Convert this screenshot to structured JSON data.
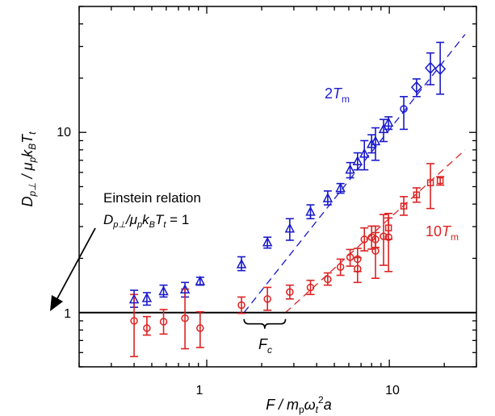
{
  "chart_data": {
    "type": "scatter",
    "xscale": "log",
    "yscale": "log",
    "xlim": [
      0.2,
      30
    ],
    "ylim": [
      0.5,
      50
    ],
    "xticks": [
      "1",
      "10"
    ],
    "yticks": [
      "1",
      "10"
    ],
    "xlabel": {
      "main": "F / m",
      "sub1": "p",
      "mid": "ω",
      "sub2": "t",
      "sup": "2",
      "tail": "a"
    },
    "ylabel": {
      "main": "D",
      "sub1": "p⊥",
      "mid": " / μ",
      "sub2": "p",
      "k": "k",
      "sub3": "B",
      "T": "T",
      "sub4": "t"
    },
    "reference_line": {
      "y": 1
    },
    "annotations": {
      "einstein_title": "Einstein relation",
      "einstein_eq": {
        "D": "D",
        "sub1": "p⊥",
        "mid": "/μ",
        "sub2": "p",
        "k": "k",
        "sub3": "B",
        "T": "T",
        "sub4": "t",
        "tail": " = 1"
      },
      "fc": {
        "F": "F",
        "sub": "c"
      },
      "blue_label": {
        "num": "2",
        "T": "T",
        "sub": "m"
      },
      "red_label": {
        "num": "10",
        "T": "T",
        "sub": "m"
      }
    },
    "fc_bracket": {
      "x_from": 1.6,
      "x_to": 2.7
    },
    "colors": {
      "blue": "#1a1acc",
      "red": "#dd2222",
      "black": "#000000"
    },
    "series": [
      {
        "label_ref": "blue_label",
        "color": "#1a1acc",
        "fit": {
          "x_from": 1.6,
          "y_from": 1.0,
          "x_to": 26,
          "y_to": 35
        },
        "points": [
          {
            "x": 0.4,
            "y": 1.18,
            "yerr": [
              1.07,
              1.33
            ],
            "marker": "triangle"
          },
          {
            "x": 0.47,
            "y": 1.2,
            "yerr": [
              1.1,
              1.29
            ],
            "marker": "triangle"
          },
          {
            "x": 0.58,
            "y": 1.31,
            "yerr": [
              1.22,
              1.42
            ],
            "marker": "triangle"
          },
          {
            "x": 0.76,
            "y": 1.34,
            "yerr": [
              1.22,
              1.47
            ],
            "marker": "triangle"
          },
          {
            "x": 0.92,
            "y": 1.49,
            "yerr": [
              1.42,
              1.57
            ],
            "marker": "triangle"
          },
          {
            "x": 1.55,
            "y": 1.85,
            "yerr": [
              1.71,
              2.04
            ],
            "marker": "triangle"
          },
          {
            "x": 2.15,
            "y": 2.45,
            "yerr": [
              2.28,
              2.62
            ],
            "marker": "triangle"
          },
          {
            "x": 2.85,
            "y": 2.92,
            "yerr": [
              2.52,
              3.32
            ],
            "marker": "triangle"
          },
          {
            "x": 3.7,
            "y": 3.62,
            "yerr": [
              3.32,
              3.96
            ],
            "marker": "triangle"
          },
          {
            "x": 4.6,
            "y": 4.3,
            "yerr": [
              3.96,
              4.73
            ],
            "marker": "triangle"
          },
          {
            "x": 5.4,
            "y": 4.9,
            "yerr": [
              4.6,
              5.2
            ],
            "marker": "triangle"
          },
          {
            "x": 6.1,
            "y": 6.2,
            "yerr": [
              5.6,
              6.8
            ],
            "marker": "triangle"
          },
          {
            "x": 6.7,
            "y": 6.9,
            "yerr": [
              6.2,
              7.7
            ],
            "marker": "triangle"
          },
          {
            "x": 7.3,
            "y": 7.6,
            "yerr": [
              6.2,
              9.0
            ],
            "marker": "triangle"
          },
          {
            "x": 8.0,
            "y": 8.6,
            "yerr": [
              7.7,
              9.7
            ],
            "marker": "triangle"
          },
          {
            "x": 8.4,
            "y": 8.9,
            "yerr": [
              7.0,
              10.6
            ],
            "marker": "triangle"
          },
          {
            "x": 9.3,
            "y": 10.4,
            "yerr": [
              8.9,
              11.8
            ],
            "marker": "triangle"
          },
          {
            "x": 9.9,
            "y": 11.3,
            "yerr": [
              10.4,
              12.2
            ],
            "marker": "triangle"
          },
          {
            "x": 12.0,
            "y": 13.5,
            "yerr": [
              10.4,
              15.8
            ],
            "marker": "circle"
          },
          {
            "x": 14.1,
            "y": 17.8,
            "yerr": [
              15.8,
              19.8
            ],
            "marker": "diamond"
          },
          {
            "x": 16.8,
            "y": 22.8,
            "yerr": [
              18.4,
              27.6
            ],
            "marker": "diamond"
          },
          {
            "x": 19.0,
            "y": 22.5,
            "yerr": [
              16.3,
              31.6
            ],
            "marker": "diamond"
          }
        ]
      },
      {
        "label_ref": "red_label",
        "color": "#dd2222",
        "fit": {
          "x_from": 2.7,
          "y_from": 1.0,
          "x_to": 26,
          "y_to": 8.0
        },
        "points": [
          {
            "x": 0.4,
            "y": 0.9,
            "yerr": [
              0.57,
              1.26
            ],
            "marker": "circle"
          },
          {
            "x": 0.47,
            "y": 0.82,
            "yerr": [
              0.75,
              0.95
            ],
            "marker": "circle"
          },
          {
            "x": 0.58,
            "y": 0.89,
            "yerr": [
              0.76,
              1.04
            ],
            "marker": "circle"
          },
          {
            "x": 0.76,
            "y": 0.93,
            "yerr": [
              0.63,
              1.35
            ],
            "marker": "circle"
          },
          {
            "x": 0.92,
            "y": 0.82,
            "yerr": [
              0.64,
              1.01
            ],
            "marker": "circle"
          },
          {
            "x": 1.55,
            "y": 1.1,
            "yerr": [
              0.99,
              1.22
            ],
            "marker": "circle"
          },
          {
            "x": 2.15,
            "y": 1.19,
            "yerr": [
              1.03,
              1.38
            ],
            "marker": "circle"
          },
          {
            "x": 2.85,
            "y": 1.3,
            "yerr": [
              1.19,
              1.42
            ],
            "marker": "circle"
          },
          {
            "x": 3.7,
            "y": 1.38,
            "yerr": [
              1.26,
              1.51
            ],
            "marker": "circle"
          },
          {
            "x": 4.6,
            "y": 1.53,
            "yerr": [
              1.42,
              1.66
            ],
            "marker": "circle"
          },
          {
            "x": 5.4,
            "y": 1.79,
            "yerr": [
              1.61,
              1.98
            ],
            "marker": "circle"
          },
          {
            "x": 6.1,
            "y": 2.03,
            "yerr": [
              1.81,
              2.24
            ],
            "marker": "circle"
          },
          {
            "x": 6.7,
            "y": 1.98,
            "yerr": [
              1.69,
              2.27
            ],
            "marker": "circle"
          },
          {
            "x": 6.7,
            "y": 1.75,
            "yerr": [
              1.47,
              2.02
            ],
            "marker": "circle"
          },
          {
            "x": 7.3,
            "y": 2.55,
            "yerr": [
              2.2,
              2.95
            ],
            "marker": "circle"
          },
          {
            "x": 8.0,
            "y": 2.62,
            "yerr": [
              2.25,
              3.02
            ],
            "marker": "circle"
          },
          {
            "x": 8.4,
            "y": 2.2,
            "yerr": [
              1.55,
              3.02
            ],
            "marker": "circle"
          },
          {
            "x": 8.4,
            "y": 2.55,
            "yerr": [
              2.3,
              2.78
            ],
            "marker": "circle"
          },
          {
            "x": 9.3,
            "y": 2.65,
            "yerr": [
              1.83,
              3.5
            ],
            "marker": "circle"
          },
          {
            "x": 9.9,
            "y": 2.62,
            "yerr": [
              1.69,
              3.55
            ],
            "marker": "circle"
          },
          {
            "x": 9.9,
            "y": 2.95,
            "yerr": [
              2.55,
              3.35
            ],
            "marker": "square"
          },
          {
            "x": 12.0,
            "y": 3.9,
            "yerr": [
              3.47,
              4.4
            ],
            "marker": "square"
          },
          {
            "x": 14.1,
            "y": 4.5,
            "yerr": [
              4.1,
              4.92
            ],
            "marker": "square"
          },
          {
            "x": 16.8,
            "y": 5.25,
            "yerr": [
              3.78,
              6.71
            ],
            "marker": "square"
          },
          {
            "x": 19.0,
            "y": 5.4,
            "yerr": [
              5.1,
              5.68
            ],
            "marker": "square"
          }
        ]
      }
    ]
  }
}
